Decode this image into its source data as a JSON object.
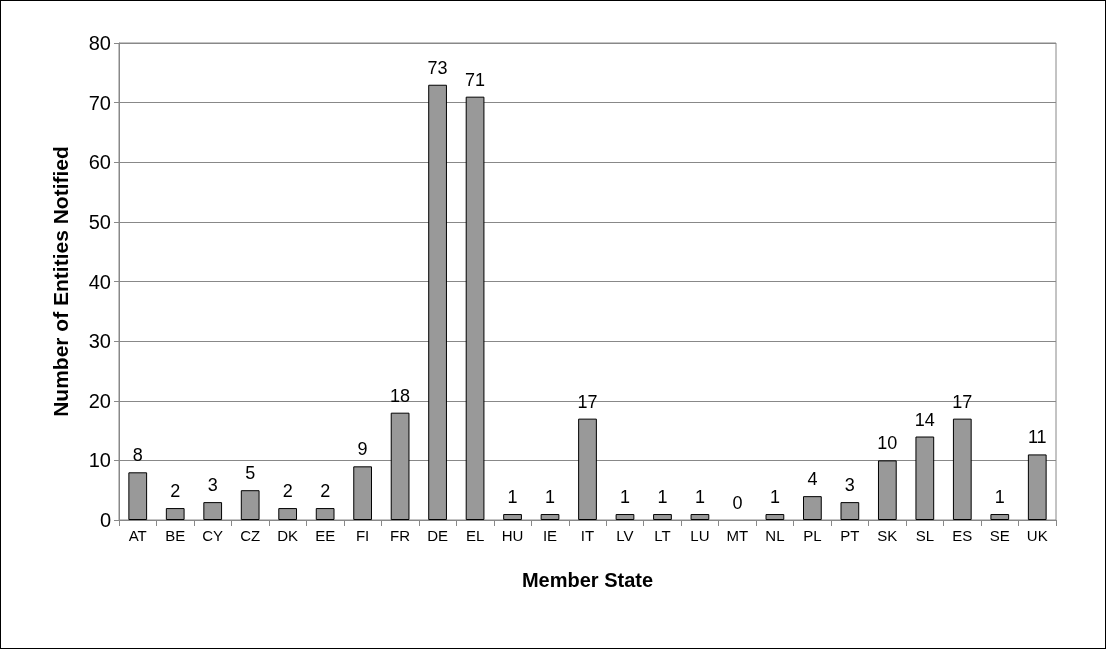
{
  "chart_data": {
    "type": "bar",
    "xlabel": "Member State",
    "ylabel": "Number of Entities Notified",
    "categories": [
      "AT",
      "BE",
      "CY",
      "CZ",
      "DK",
      "EE",
      "FI",
      "FR",
      "DE",
      "EL",
      "HU",
      "IE",
      "IT",
      "LV",
      "LT",
      "LU",
      "MT",
      "NL",
      "PL",
      "PT",
      "SK",
      "SL",
      "ES",
      "SE",
      "UK"
    ],
    "values": [
      8,
      2,
      3,
      5,
      2,
      2,
      9,
      18,
      73,
      71,
      1,
      1,
      17,
      1,
      1,
      1,
      0,
      1,
      4,
      3,
      10,
      14,
      17,
      1,
      11
    ],
    "color": "#999999",
    "ylim": [
      0,
      80
    ],
    "yticks": [
      0,
      10,
      20,
      30,
      40,
      50,
      60,
      70,
      80
    ],
    "grid": "y",
    "data_labels": true
  }
}
